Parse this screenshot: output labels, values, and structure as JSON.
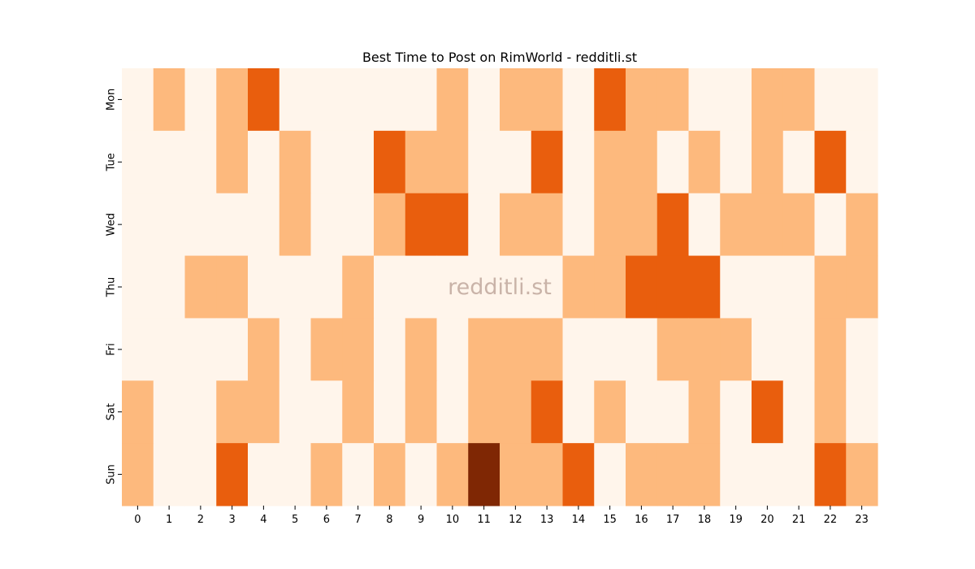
{
  "chart_data": {
    "type": "heatmap",
    "title": "Best Time to Post on RimWorld - redditli.st",
    "watermark": "redditli.st",
    "xlabel": "",
    "ylabel": "",
    "x": [
      "0",
      "1",
      "2",
      "3",
      "4",
      "5",
      "6",
      "7",
      "8",
      "9",
      "10",
      "11",
      "12",
      "13",
      "14",
      "15",
      "16",
      "17",
      "18",
      "19",
      "20",
      "21",
      "22",
      "23"
    ],
    "y": [
      "Mon",
      "Tue",
      "Wed",
      "Thu",
      "Fri",
      "Sat",
      "Sun"
    ],
    "colorscale": "Oranges",
    "levels": {
      "0": "#fff5eb",
      "1": "#fdb97d",
      "2": "#e95e0d",
      "3": "#7f2704"
    },
    "colorbar": false,
    "grid": false,
    "values": [
      [
        0,
        1,
        0,
        1,
        2,
        0,
        0,
        0,
        0,
        0,
        1,
        0,
        1,
        1,
        0,
        2,
        1,
        1,
        0,
        0,
        1,
        1,
        0,
        0
      ],
      [
        0,
        0,
        0,
        1,
        0,
        1,
        0,
        0,
        2,
        1,
        1,
        0,
        0,
        2,
        0,
        1,
        1,
        0,
        1,
        0,
        1,
        0,
        2,
        0
      ],
      [
        0,
        0,
        0,
        0,
        0,
        1,
        0,
        0,
        1,
        2,
        2,
        0,
        1,
        1,
        0,
        1,
        1,
        2,
        0,
        1,
        1,
        1,
        0,
        1
      ],
      [
        0,
        0,
        1,
        1,
        0,
        0,
        0,
        1,
        0,
        0,
        0,
        0,
        0,
        0,
        1,
        1,
        2,
        2,
        2,
        0,
        0,
        0,
        1,
        1
      ],
      [
        0,
        0,
        0,
        0,
        1,
        0,
        1,
        1,
        0,
        1,
        0,
        1,
        1,
        1,
        0,
        0,
        0,
        1,
        1,
        1,
        0,
        0,
        1,
        0
      ],
      [
        1,
        0,
        0,
        1,
        1,
        0,
        0,
        1,
        0,
        1,
        0,
        1,
        1,
        2,
        0,
        1,
        0,
        0,
        1,
        0,
        2,
        0,
        1,
        0
      ],
      [
        1,
        0,
        0,
        2,
        0,
        0,
        1,
        0,
        1,
        0,
        1,
        3,
        1,
        1,
        2,
        0,
        1,
        1,
        1,
        0,
        0,
        0,
        2,
        1
      ]
    ]
  }
}
